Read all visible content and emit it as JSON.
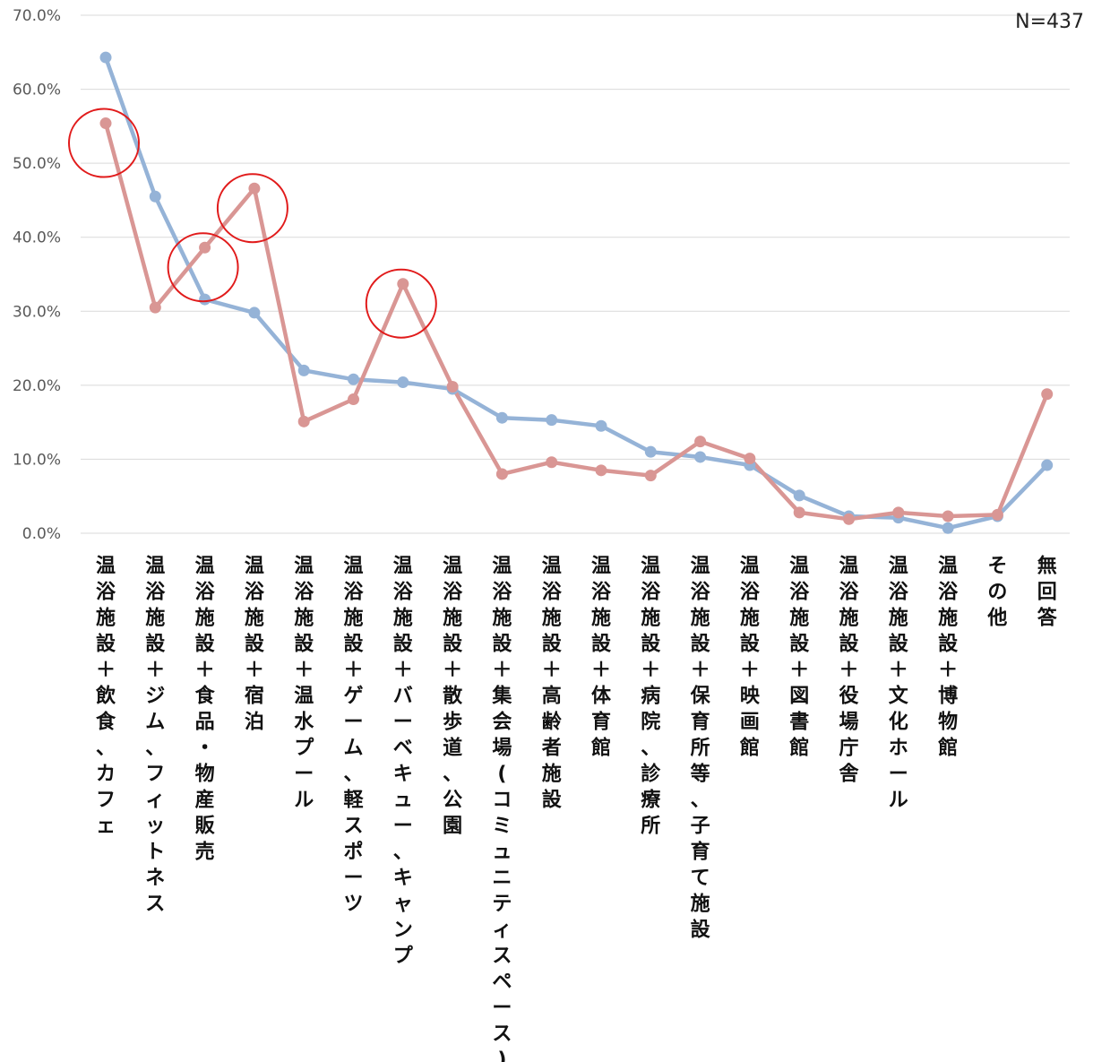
{
  "note": "N=437",
  "chart_data": {
    "type": "line",
    "categories": [
      "温浴施設＋飲食、カフェ",
      "温浴施設＋ジム、フィットネス",
      "温浴施設＋食品・物産販売",
      "温浴施設＋宿泊",
      "温浴施設＋温水プール",
      "温浴施設＋ゲーム、軽スポーツ",
      "温浴施設＋バーベキュー、キャンプ",
      "温浴施設＋散歩道、公園",
      "温浴施設＋集会場(コミュニティスペース)",
      "温浴施設＋高齢者施設",
      "温浴施設＋体育館",
      "温浴施設＋病院、診療所",
      "温浴施設＋保育所等、子育て施設",
      "温浴施設＋映画館",
      "温浴施設＋図書館",
      "温浴施設＋役場庁舎",
      "温浴施設＋文化ホール",
      "温浴施設＋博物館",
      "その他",
      "無回答"
    ],
    "series": [
      {
        "values": [
          64.3,
          45.5,
          31.6,
          29.8,
          22.0,
          20.8,
          20.4,
          19.5,
          15.6,
          15.3,
          14.5,
          11.0,
          10.3,
          9.2,
          5.1,
          2.3,
          2.1,
          0.7,
          2.3,
          9.2
        ],
        "color": "#95B3D7"
      },
      {
        "values": [
          55.4,
          30.5,
          38.6,
          46.6,
          15.1,
          18.1,
          33.7,
          19.8,
          8.0,
          9.6,
          8.5,
          7.8,
          12.4,
          10.1,
          2.8,
          1.9,
          2.8,
          2.3,
          2.5,
          18.8
        ],
        "color": "#D99694"
      }
    ],
    "highlighted_categories": [
      0,
      2,
      3,
      6
    ],
    "highlight_color": "#E11B1B",
    "ylim": [
      0,
      70
    ],
    "yticks": [
      "0.0%",
      "10.0%",
      "20.0%",
      "30.0%",
      "40.0%",
      "50.0%",
      "60.0%",
      "70.0%"
    ],
    "grid": true
  }
}
